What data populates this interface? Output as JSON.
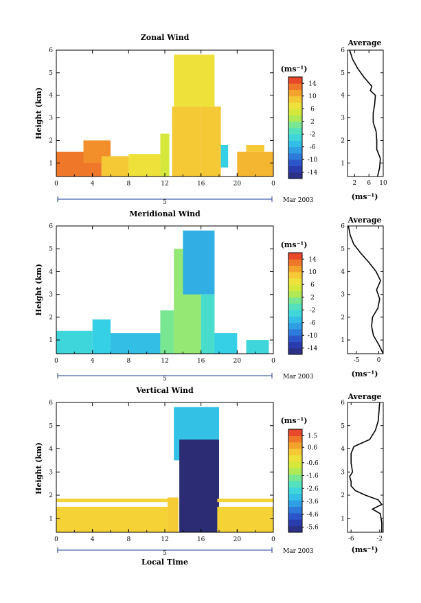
{
  "chart_data": [
    {
      "type": "heatmap",
      "title": "Zonal Wind",
      "ylabel": "Height (km)",
      "xlabel": "",
      "x_ticks": [
        "0",
        "4",
        "8",
        "12",
        "16",
        "20",
        "0"
      ],
      "y_ticks": [
        "1",
        "2",
        "3",
        "4",
        "5",
        "6"
      ],
      "xlim": [
        0,
        24
      ],
      "ylim": [
        0.4,
        6.0
      ],
      "date_day": "5",
      "date_label": "Mar 2003",
      "colorbar": {
        "label": "(ms⁻¹)",
        "ticks": [
          "14",
          "10",
          "6",
          "2",
          "-2",
          "-6",
          "-10",
          "-14"
        ],
        "range": [
          -16,
          16
        ]
      },
      "regions": [
        {
          "x0": 0.0,
          "x1": 5.0,
          "y0": 0.4,
          "y1": 1.5,
          "value": 13
        },
        {
          "x0": 3.0,
          "x1": 6.0,
          "y0": 1.0,
          "y1": 2.0,
          "value": 12
        },
        {
          "x0": 5.0,
          "x1": 8.0,
          "y0": 0.4,
          "y1": 1.3,
          "value": 9
        },
        {
          "x0": 8.0,
          "x1": 11.5,
          "y0": 0.4,
          "y1": 1.4,
          "value": 7
        },
        {
          "x0": 11.5,
          "x1": 12.5,
          "y0": 0.4,
          "y1": 2.3,
          "value": 5
        },
        {
          "x0": 12.8,
          "x1": 16.0,
          "y0": 0.4,
          "y1": 3.5,
          "value": 9
        },
        {
          "x0": 13.0,
          "x1": 17.5,
          "y0": 3.5,
          "y1": 5.8,
          "value": 7
        },
        {
          "x0": 16.0,
          "x1": 18.2,
          "y0": 0.4,
          "y1": 3.5,
          "value": 9
        },
        {
          "x0": 18.2,
          "x1": 19.0,
          "y0": 0.8,
          "y1": 1.8,
          "value": -4
        },
        {
          "x0": 20.0,
          "x1": 24.0,
          "y0": 0.4,
          "y1": 1.5,
          "value": 10
        },
        {
          "x0": 21.0,
          "x1": 23.0,
          "y0": 1.5,
          "y1": 1.8,
          "value": 9
        }
      ],
      "profile": {
        "title": "Average",
        "xlabel": "(ms⁻¹)",
        "x_ticks": [
          "2",
          "6",
          "10"
        ],
        "xlim": [
          0,
          10
        ],
        "height": [
          0.4,
          0.8,
          1.2,
          1.6,
          2.0,
          2.4,
          2.8,
          3.2,
          3.6,
          4.0,
          4.2,
          4.4,
          4.8,
          5.2,
          5.6,
          6.0
        ],
        "values": [
          8.4,
          9.0,
          9.2,
          8.2,
          8.2,
          8.0,
          7.2,
          7.2,
          7.6,
          7.8,
          6.4,
          6.8,
          4.6,
          2.8,
          1.4,
          0.6
        ]
      }
    },
    {
      "type": "heatmap",
      "title": "Meridional Wind",
      "ylabel": "Height (km)",
      "xlabel": "",
      "x_ticks": [
        "0",
        "4",
        "8",
        "12",
        "16",
        "20",
        "0"
      ],
      "y_ticks": [
        "1",
        "2",
        "3",
        "4",
        "5",
        "6"
      ],
      "xlim": [
        0,
        24
      ],
      "ylim": [
        0.4,
        6.0
      ],
      "date_day": "5",
      "date_label": "Mar 2003",
      "colorbar": {
        "label": "(ms⁻¹)",
        "ticks": [
          "14",
          "10",
          "6",
          "2",
          "-2",
          "-6",
          "-10",
          "-14"
        ],
        "range": [
          -16,
          16
        ]
      },
      "regions": [
        {
          "x0": 0.0,
          "x1": 4.0,
          "y0": 0.4,
          "y1": 1.4,
          "value": -3
        },
        {
          "x0": 4.0,
          "x1": 6.0,
          "y0": 0.4,
          "y1": 1.9,
          "value": -4
        },
        {
          "x0": 6.0,
          "x1": 11.5,
          "y0": 0.4,
          "y1": 1.3,
          "value": -5
        },
        {
          "x0": 11.5,
          "x1": 13.0,
          "y0": 0.4,
          "y1": 2.3,
          "value": 1
        },
        {
          "x0": 13.0,
          "x1": 16.0,
          "y0": 0.4,
          "y1": 5.0,
          "value": 2
        },
        {
          "x0": 14.0,
          "x1": 17.5,
          "y0": 3.0,
          "y1": 5.8,
          "value": -6
        },
        {
          "x0": 16.0,
          "x1": 17.5,
          "y0": 0.4,
          "y1": 3.0,
          "value": -2
        },
        {
          "x0": 17.5,
          "x1": 20.0,
          "y0": 0.4,
          "y1": 1.3,
          "value": -4
        },
        {
          "x0": 21.0,
          "x1": 23.5,
          "y0": 0.4,
          "y1": 1.0,
          "value": -3
        }
      ],
      "profile": {
        "title": "Average",
        "xlabel": "(ms⁻¹)",
        "x_ticks": [
          "-5",
          "0"
        ],
        "xlim": [
          -7,
          1
        ],
        "height": [
          0.4,
          0.8,
          1.2,
          1.6,
          2.0,
          2.4,
          2.8,
          3.2,
          3.6,
          4.0,
          4.4,
          4.8,
          5.2,
          5.6,
          6.0
        ],
        "values": [
          1.0,
          0.0,
          -1.2,
          -1.6,
          -1.4,
          -0.2,
          0.2,
          -0.5,
          0.4,
          -0.6,
          -2.2,
          -4.0,
          -5.6,
          -6.4,
          -6.8
        ]
      }
    },
    {
      "type": "heatmap",
      "title": "Vertical Wind",
      "ylabel": "Height (km)",
      "xlabel": "Local Time",
      "x_ticks": [
        "0",
        "4",
        "8",
        "12",
        "16",
        "20",
        "0"
      ],
      "y_ticks": [
        "1",
        "2",
        "3",
        "4",
        "5",
        "6"
      ],
      "xlim": [
        0,
        24
      ],
      "ylim": [
        0.4,
        6.0
      ],
      "date_day": "5",
      "date_label": "Mar 2003",
      "colorbar": {
        "label": "(ms⁻¹)",
        "ticks": [
          "1.5",
          "0.6",
          "-0.6",
          "-1.6",
          "-2.6",
          "-3.6",
          "-4.6",
          "-5.6"
        ],
        "range": [
          -6.0,
          2.0
        ]
      },
      "regions": [
        {
          "x0": 0.0,
          "x1": 12.3,
          "y0": 0.4,
          "y1": 1.5,
          "value": 0.1
        },
        {
          "x0": 0.0,
          "x1": 12.3,
          "y0": 1.7,
          "y1": 1.85,
          "value": 0.1
        },
        {
          "x0": 12.3,
          "x1": 13.5,
          "y0": 0.4,
          "y1": 1.9,
          "value": 0.2
        },
        {
          "x0": 13.0,
          "x1": 18.0,
          "y0": 3.5,
          "y1": 5.8,
          "value": -3.2
        },
        {
          "x0": 13.6,
          "x1": 18.0,
          "y0": 0.4,
          "y1": 4.4,
          "value": -6.0
        },
        {
          "x0": 17.8,
          "x1": 24.0,
          "y0": 0.4,
          "y1": 1.5,
          "value": 0.1
        },
        {
          "x0": 17.8,
          "x1": 24.0,
          "y0": 1.7,
          "y1": 1.85,
          "value": 0.1
        }
      ],
      "profile": {
        "title": "Average",
        "xlabel": "(ms⁻¹)",
        "x_ticks": [
          "-6",
          "-2"
        ],
        "xlim": [
          -6.5,
          -1.5
        ],
        "height": [
          0.4,
          0.8,
          1.2,
          1.4,
          1.6,
          1.8,
          2.0,
          2.2,
          2.4,
          2.6,
          2.8,
          3.0,
          3.4,
          3.8,
          4.1,
          4.4,
          4.8,
          5.2,
          5.6,
          6.0
        ],
        "values": [
          -1.7,
          -1.7,
          -1.9,
          -3.0,
          -1.7,
          -2.2,
          -4.0,
          -5.4,
          -6.0,
          -6.0,
          -6.2,
          -5.8,
          -6.0,
          -6.0,
          -5.6,
          -3.4,
          -2.6,
          -2.2,
          -2.1,
          -2.0
        ]
      }
    }
  ]
}
